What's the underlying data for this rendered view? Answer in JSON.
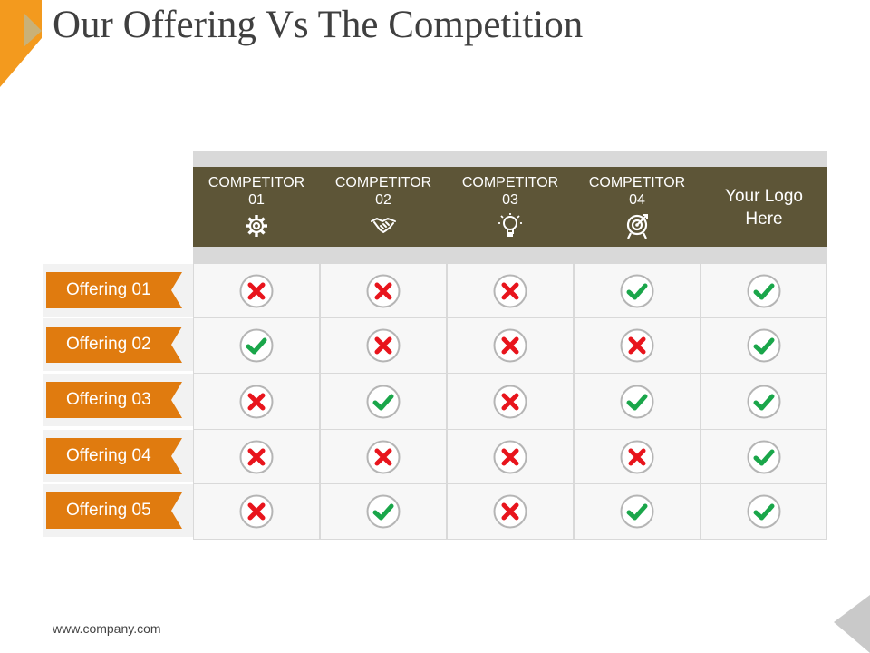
{
  "slide": {
    "title": "Our Offering Vs The Competition",
    "footer": "www.company.com"
  },
  "colors": {
    "header_bg": "#5d5537",
    "tag_bg": "#e07b0f",
    "accent": "#f0911a",
    "check": "#1aa64a",
    "cross": "#e8141c"
  },
  "columns": [
    {
      "label": "COMPETITOR\n01",
      "icon": "gear-icon"
    },
    {
      "label": "COMPETITOR\n02",
      "icon": "handshake-icon"
    },
    {
      "label": "COMPETITOR\n03",
      "icon": "lightbulb-icon"
    },
    {
      "label": "COMPETITOR\n04",
      "icon": "target-icon"
    },
    {
      "label": "Your Logo\nHere",
      "icon": ""
    }
  ],
  "rows": [
    {
      "label": "Offering 01",
      "values": [
        "cross",
        "cross",
        "cross",
        "check",
        "check"
      ]
    },
    {
      "label": "Offering 02",
      "values": [
        "check",
        "cross",
        "cross",
        "cross",
        "check"
      ]
    },
    {
      "label": "Offering 03",
      "values": [
        "cross",
        "check",
        "cross",
        "check",
        "check"
      ]
    },
    {
      "label": "Offering 04",
      "values": [
        "cross",
        "cross",
        "cross",
        "cross",
        "check"
      ]
    },
    {
      "label": "Offering 05",
      "values": [
        "cross",
        "check",
        "cross",
        "check",
        "check"
      ]
    }
  ]
}
